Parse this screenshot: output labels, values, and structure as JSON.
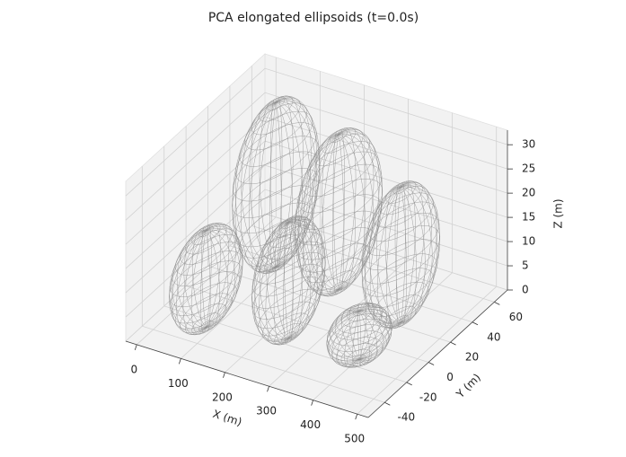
{
  "chart_data": {
    "type": "ellipsoid3d",
    "title": "PCA elongated ellipsoids (t=0.0s)",
    "xlabel": "X (m)",
    "ylabel": "Y (m)",
    "zlabel": "Z (m)",
    "xlim": [
      -25,
      525
    ],
    "ylim": [
      -55,
      72
    ],
    "zlim": [
      0,
      33
    ],
    "xticks": [
      0,
      100,
      200,
      300,
      400,
      500
    ],
    "yticks": [
      -40,
      -20,
      0,
      20,
      40,
      60
    ],
    "zticks": [
      0,
      5,
      10,
      15,
      20,
      25,
      30
    ],
    "grid": true,
    "color": "#8c8c8c",
    "ellipsoids": [
      {
        "center": [
          92,
          35,
          17
        ],
        "radii": [
          60,
          32,
          17
        ]
      },
      {
        "center": [
          239,
          33,
          16
        ],
        "radii": [
          60,
          32,
          16
        ]
      },
      {
        "center": [
          85,
          -26,
          10
        ],
        "radii": [
          50,
          27,
          10
        ]
      },
      {
        "center": [
          405,
          23,
          14
        ],
        "radii": [
          55,
          28,
          14
        ]
      },
      {
        "center": [
          245,
          -15,
          12
        ],
        "radii": [
          50,
          27,
          12
        ]
      },
      {
        "center": [
          403,
          -14,
          5
        ],
        "radii": [
          55,
          20,
          5
        ]
      }
    ]
  }
}
